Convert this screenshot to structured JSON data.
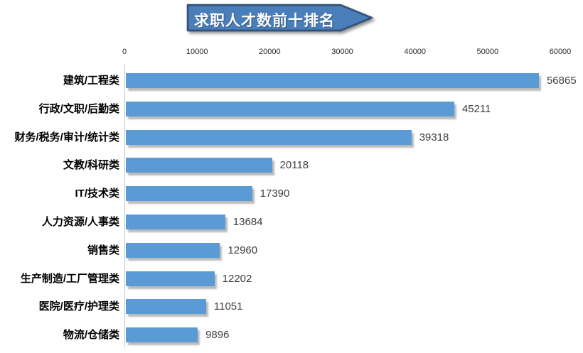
{
  "title": {
    "text": "求职人才数前十排名"
  },
  "chart_data": {
    "type": "bar",
    "orientation": "horizontal",
    "title": "求职人才数前十排名",
    "categories": [
      "建筑/工程类",
      "行政/文职/后勤类",
      "财务/税务/审计/统计类",
      "文教/科研类",
      "IT/技术类",
      "人力资源/人事类",
      "销售类",
      "生产制造/工厂管理类",
      "医院/医疗/护理类",
      "物流/仓储类"
    ],
    "values": [
      56865,
      45211,
      39318,
      20118,
      17390,
      13684,
      12960,
      12202,
      11051,
      9896
    ],
    "value_labels": [
      "56865",
      "45211",
      "39318",
      "20118",
      "17390",
      "13684",
      "12960",
      "12202",
      "11051",
      "9896"
    ],
    "xlabel": "",
    "ylabel": "",
    "xlim": [
      0,
      60000
    ],
    "xticks": [
      0,
      10000,
      20000,
      30000,
      40000,
      50000,
      60000
    ],
    "xtick_labels": [
      "0",
      "10000",
      "20000",
      "30000",
      "40000",
      "50000",
      "60000"
    ],
    "grid": "off",
    "legend": "none",
    "axis_position": "top"
  },
  "colors": {
    "bar": "#5b9bd5",
    "banner_fill": "#4a7ebb",
    "banner_border": "#17375e",
    "axis_line": "#c6c6c6",
    "value_label": "#3f3f3f",
    "category_label": "#000000",
    "background": "#ffffff"
  }
}
